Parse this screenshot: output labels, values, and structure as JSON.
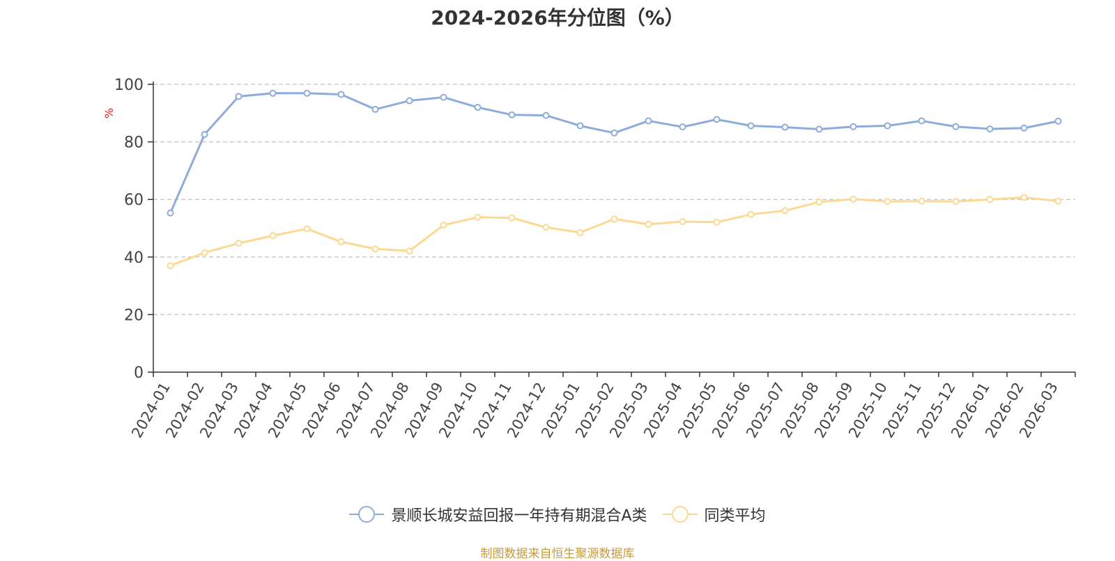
{
  "chart_data": {
    "type": "line",
    "title": "2024-2026年分位图（%）",
    "ylabel": "%",
    "ylim": [
      0,
      100
    ],
    "yticks": [
      0,
      20,
      40,
      60,
      80,
      100
    ],
    "grid": true,
    "legend_position": "bottom",
    "categories": [
      "2024-01",
      "2024-02",
      "2024-03",
      "2024-04",
      "2024-05",
      "2024-06",
      "2024-07",
      "2024-08",
      "2024-09",
      "2024-10",
      "2024-11",
      "2024-12",
      "2025-01",
      "2025-02",
      "2025-03",
      "2025-04",
      "2025-05",
      "2025-06",
      "2025-07",
      "2025-08",
      "2025-09",
      "2025-10",
      "2025-11",
      "2025-12",
      "2026-01",
      "2026-02",
      "2026-03"
    ],
    "series": [
      {
        "name": "景顺长城安益回报一年持有期混合A类",
        "color": "#8eacdb",
        "values": [
          55.3,
          82.6,
          95.8,
          96.9,
          96.9,
          96.5,
          91.3,
          94.3,
          95.5,
          92.0,
          89.4,
          89.2,
          85.6,
          83.1,
          87.3,
          85.2,
          87.8,
          85.6,
          85.1,
          84.4,
          85.3,
          85.6,
          87.3,
          85.3,
          84.5,
          84.8,
          87.2
        ]
      },
      {
        "name": "同类平均",
        "color": "#fcd993",
        "values": [
          37.0,
          41.5,
          44.8,
          47.4,
          49.8,
          45.3,
          42.8,
          42.1,
          51.1,
          53.8,
          53.6,
          50.3,
          48.5,
          53.2,
          51.4,
          52.3,
          52.1,
          54.8,
          56.1,
          59.1,
          60.1,
          59.3,
          59.4,
          59.3,
          60.0,
          60.7,
          59.4
        ]
      }
    ]
  },
  "source_note": "制图数据来自恒生聚源数据库"
}
